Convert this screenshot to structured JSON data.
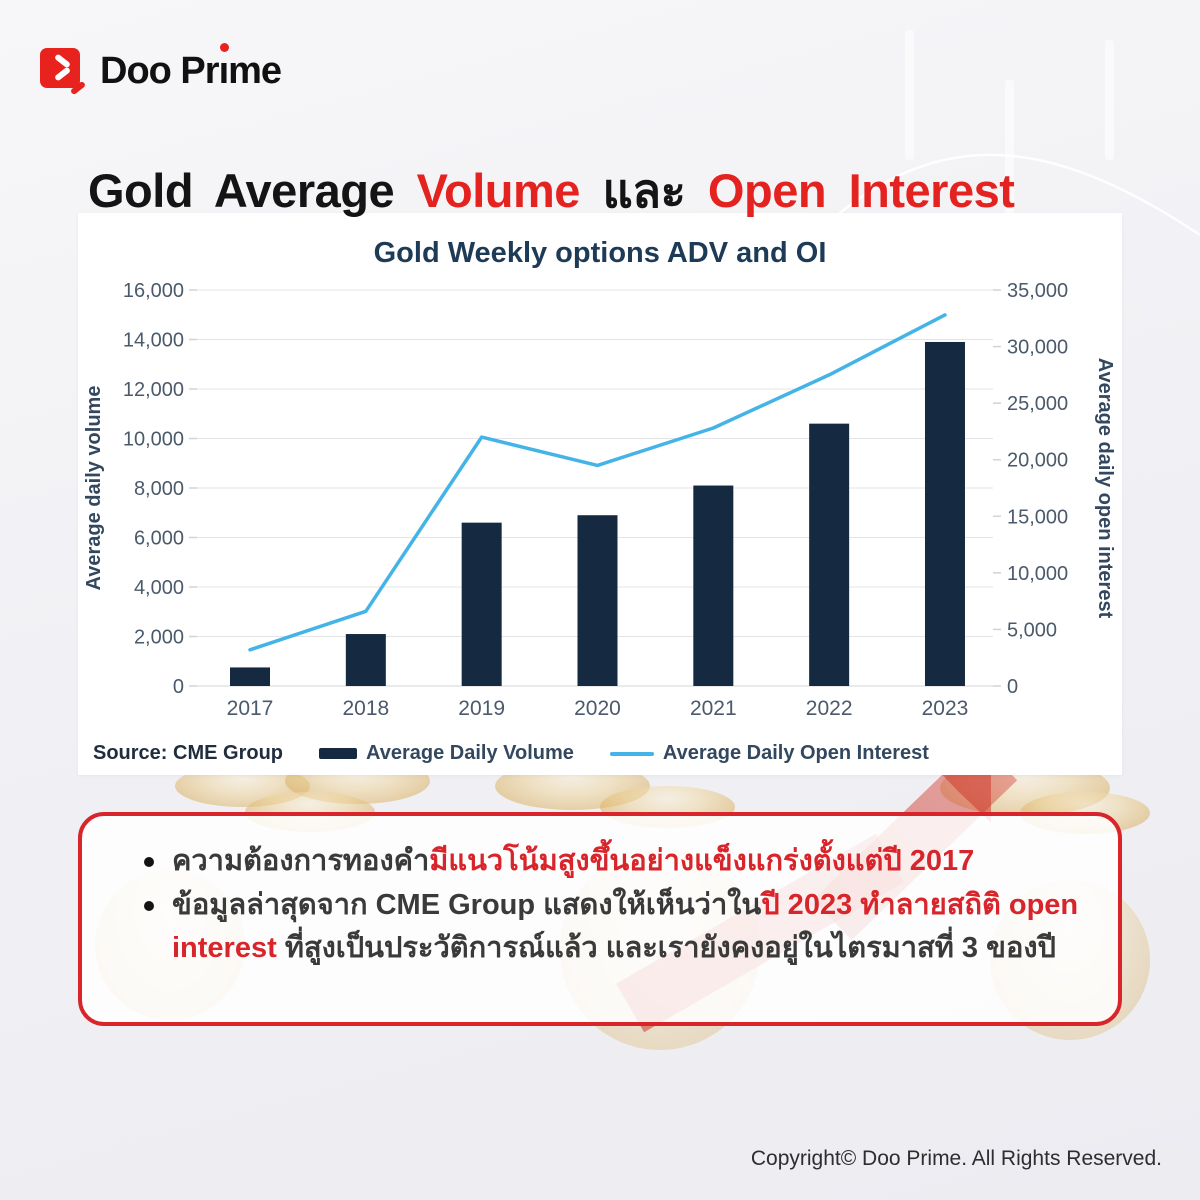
{
  "colors": {
    "accent_red": "#e42320",
    "notes_red": "#d8252b",
    "bar_navy": "#152940",
    "line_blue": "#44b3e7",
    "chart_title_navy": "#1d3a57",
    "axis_text": "#4b5a6b"
  },
  "logo": {
    "brand": "Doo Prime"
  },
  "title": {
    "segments": [
      {
        "text": "Gold Average ",
        "red": false
      },
      {
        "text": "Volume",
        "red": true
      },
      {
        "text": " และ ",
        "red": false
      },
      {
        "text": "Open Interest",
        "red": true
      }
    ]
  },
  "chart_data": {
    "type": "bar+line",
    "title": "Gold Weekly options ADV and OI",
    "categories": [
      "2017",
      "2018",
      "2019",
      "2020",
      "2021",
      "2022",
      "2023"
    ],
    "series": [
      {
        "name": "Average Daily Volume",
        "type": "bar",
        "axis": "left",
        "color": "#152940",
        "values": [
          750,
          2100,
          6600,
          6900,
          8100,
          10600,
          13900
        ]
      },
      {
        "name": "Average Daily Open Interest",
        "type": "line",
        "axis": "right",
        "color": "#44b3e7",
        "values": [
          3200,
          6600,
          22000,
          19500,
          22800,
          27500,
          32800
        ]
      }
    ],
    "left_axis": {
      "label": "Average daily volume",
      "min": 0,
      "max": 16000,
      "step": 2000
    },
    "right_axis": {
      "label": "Average daily open interest",
      "min": 0,
      "max": 35000,
      "step": 5000
    },
    "grid": "horizontal",
    "legend_position": "bottom",
    "source": "Source: CME Group"
  },
  "notes": {
    "bullets": [
      {
        "segments": [
          {
            "text": "ความต้องการทองคำ",
            "red": false
          },
          {
            "text": "มีแนวโน้มสูงขึ้นอย่างแข็งแกร่งตั้งแต่ปี 2017",
            "red": true
          }
        ]
      },
      {
        "segments": [
          {
            "text": "ข้อมูลล่าสุดจาก CME Group แสดงให้เห็นว่าใน",
            "red": false
          },
          {
            "text": "ปี 2023 ทำลายสถิติ open interest",
            "red": true
          },
          {
            "text": " ที่สูงเป็นประวัติการณ์แล้ว และเรายังคงอยู่ในไตรมาสที่ 3 ของปี",
            "red": false
          }
        ]
      }
    ]
  },
  "footer": {
    "copyright": "Copyright© Doo Prime. All Rights Reserved."
  }
}
